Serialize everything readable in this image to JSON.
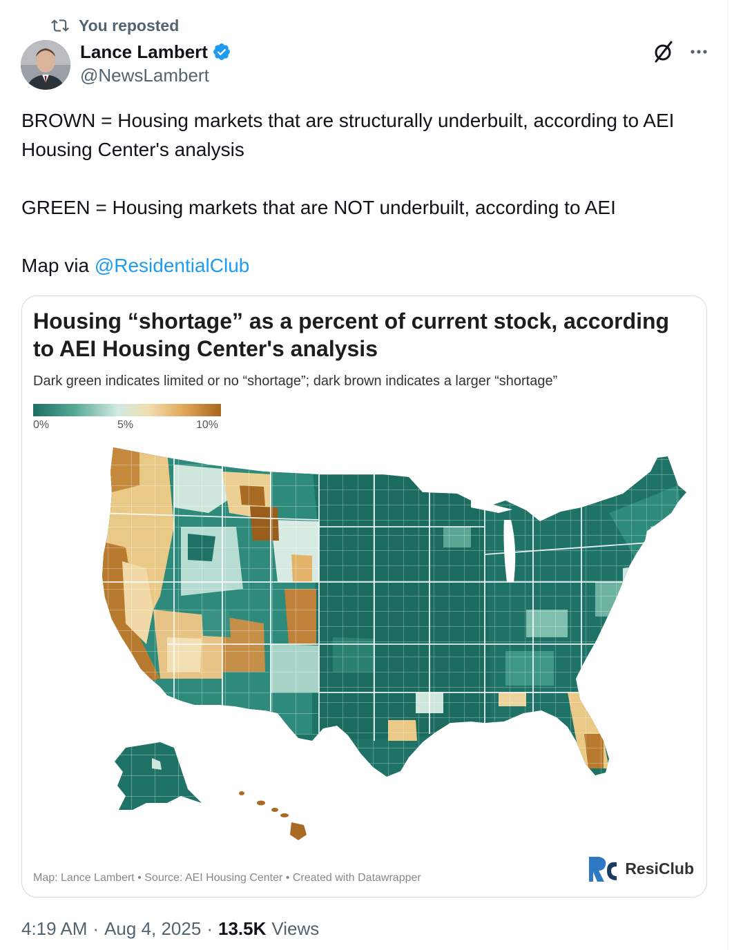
{
  "repost": {
    "label": "You reposted"
  },
  "author": {
    "name": "Lance Lambert",
    "handle": "@NewsLambert"
  },
  "tweet": {
    "line1": "BROWN = Housing markets that are structurally underbuilt, according to AEI Housing Center's analysis",
    "line2": "GREEN = Housing markets that are NOT underbuilt, according to AEI",
    "line3_prefix": "Map via ",
    "mention": "@ResidentialClub"
  },
  "media": {
    "title": "Housing “shortage” as a percent of current stock, according to AEI Housing Center's analysis",
    "subtitle": "Dark green indicates limited or no “shortage”; dark brown indicates a larger “shortage”",
    "legend": {
      "ticks": [
        "0%",
        "5%",
        "10%"
      ],
      "colors": [
        "#1d6f63",
        "#d2eae2",
        "#a7651e"
      ]
    },
    "footer": "Map: Lance Lambert • Source: AEI Housing Center • Created with Datawrapper",
    "brand": "ResiClub"
  },
  "meta": {
    "time": "4:19 AM",
    "date": "Aug 4, 2025",
    "views_count": "13.5K",
    "views_label": "Views"
  },
  "icons": {
    "repost": "repost-icon",
    "verified": "verified-badge-icon",
    "grok": "grok-icon",
    "more": "more-options-icon"
  },
  "colors": {
    "link": "#1d9bf0",
    "muted": "#536471",
    "verified": "#1d9bf0"
  }
}
